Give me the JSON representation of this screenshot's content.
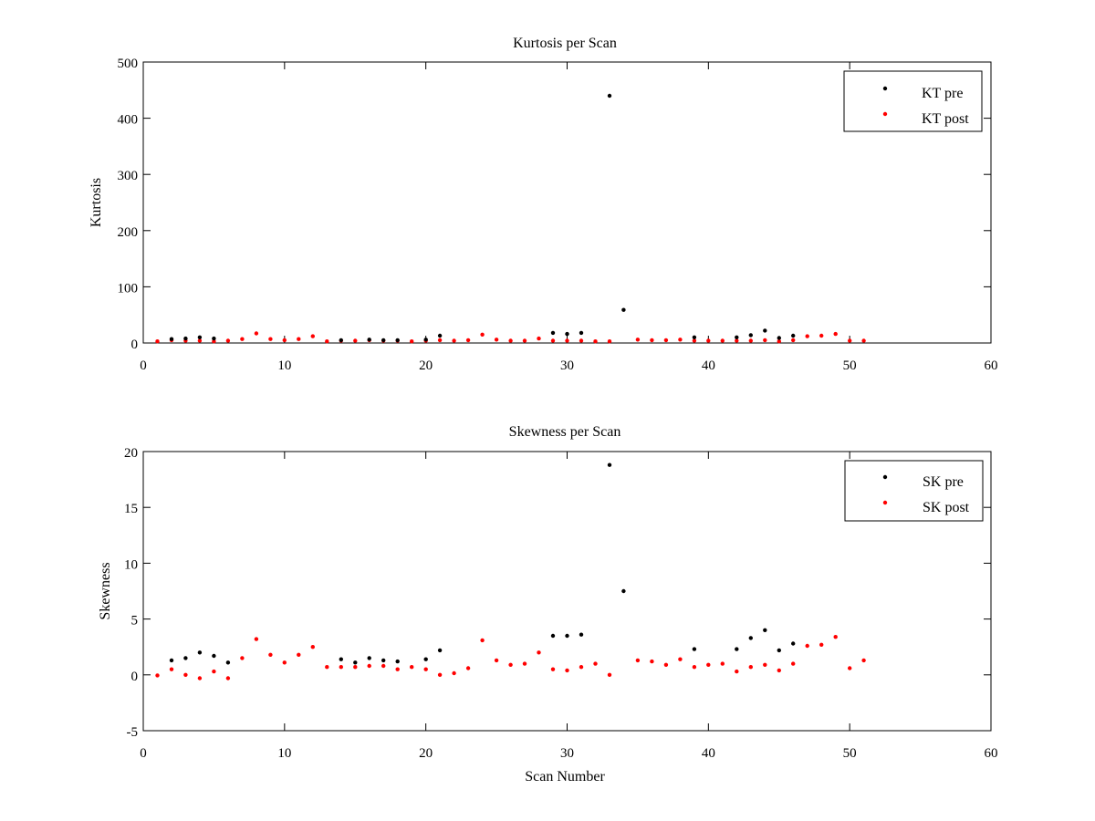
{
  "chart_data": [
    {
      "type": "scatter",
      "title": "Kurtosis per Scan",
      "xlabel": "",
      "ylabel": "Kurtosis",
      "xlim": [
        0,
        60
      ],
      "ylim": [
        0,
        500
      ],
      "xticks": [
        0,
        10,
        20,
        30,
        40,
        50,
        60
      ],
      "yticks": [
        0,
        100,
        200,
        300,
        400,
        500
      ],
      "grid": false,
      "legend_position": "top-right",
      "series": [
        {
          "name": "KT pre",
          "color": "#000000",
          "x": [
            2,
            3,
            4,
            5,
            14,
            16,
            17,
            18,
            20,
            21,
            29,
            30,
            31,
            33,
            34,
            39,
            42,
            43,
            44,
            45,
            46
          ],
          "y": [
            7,
            8,
            10,
            8,
            5,
            6,
            5,
            5,
            6,
            13,
            18,
            16,
            18,
            440,
            59,
            10,
            10,
            14,
            22,
            9,
            13
          ]
        },
        {
          "name": "KT post",
          "color": "#ff0000",
          "x": [
            1,
            2,
            3,
            4,
            5,
            6,
            7,
            8,
            9,
            10,
            11,
            12,
            13,
            14,
            15,
            16,
            17,
            18,
            19,
            20,
            21,
            22,
            23,
            24,
            25,
            26,
            27,
            28,
            29,
            30,
            31,
            32,
            33,
            35,
            36,
            37,
            38,
            39,
            40,
            41,
            42,
            43,
            44,
            45,
            46,
            47,
            48,
            49,
            50,
            51
          ],
          "y": [
            3,
            5,
            4,
            4,
            3,
            4,
            7,
            17,
            7,
            5,
            7,
            12,
            3,
            4,
            4,
            5,
            4,
            4,
            3,
            4,
            5,
            4,
            5,
            15,
            6,
            4,
            4,
            8,
            4,
            4,
            4,
            3,
            3,
            6,
            5,
            5,
            6,
            4,
            4,
            4,
            4,
            4,
            5,
            3,
            5,
            12,
            13,
            16,
            4,
            4
          ]
        }
      ]
    },
    {
      "type": "scatter",
      "title": "Skewness per Scan",
      "xlabel": "Scan Number",
      "ylabel": "Skewness",
      "xlim": [
        0,
        60
      ],
      "ylim": [
        -5,
        20
      ],
      "xticks": [
        0,
        10,
        20,
        30,
        40,
        50,
        60
      ],
      "yticks": [
        -5,
        0,
        5,
        10,
        15,
        20
      ],
      "grid": false,
      "legend_position": "top-right",
      "series": [
        {
          "name": "SK pre",
          "color": "#000000",
          "x": [
            2,
            3,
            4,
            5,
            6,
            14,
            15,
            16,
            17,
            18,
            20,
            21,
            29,
            30,
            31,
            33,
            34,
            39,
            42,
            43,
            44,
            45,
            46
          ],
          "y": [
            1.3,
            1.5,
            2.0,
            1.7,
            1.1,
            1.4,
            1.1,
            1.5,
            1.3,
            1.2,
            1.4,
            2.2,
            3.5,
            3.5,
            3.6,
            18.8,
            7.5,
            2.3,
            2.3,
            3.3,
            4.0,
            2.2,
            2.8
          ]
        },
        {
          "name": "SK post",
          "color": "#ff0000",
          "x": [
            1,
            2,
            3,
            4,
            5,
            6,
            7,
            8,
            9,
            10,
            11,
            12,
            13,
            14,
            15,
            16,
            17,
            18,
            19,
            20,
            21,
            22,
            23,
            24,
            25,
            26,
            27,
            28,
            29,
            30,
            31,
            32,
            33,
            35,
            36,
            37,
            38,
            39,
            40,
            41,
            42,
            43,
            44,
            45,
            46,
            47,
            48,
            49,
            50,
            51
          ],
          "y": [
            -0.05,
            0.5,
            0.0,
            -0.3,
            0.3,
            -0.3,
            1.5,
            3.2,
            1.8,
            1.1,
            1.8,
            2.5,
            0.7,
            0.7,
            0.7,
            0.8,
            0.8,
            0.5,
            0.7,
            0.5,
            0.0,
            0.15,
            0.6,
            3.1,
            1.3,
            0.9,
            1.0,
            2.0,
            0.5,
            0.4,
            0.7,
            1.0,
            0.0,
            1.3,
            1.2,
            0.9,
            1.4,
            0.7,
            0.9,
            1.0,
            0.3,
            0.7,
            0.9,
            0.4,
            1.0,
            2.6,
            2.7,
            3.4,
            0.6,
            1.3
          ]
        }
      ]
    }
  ]
}
